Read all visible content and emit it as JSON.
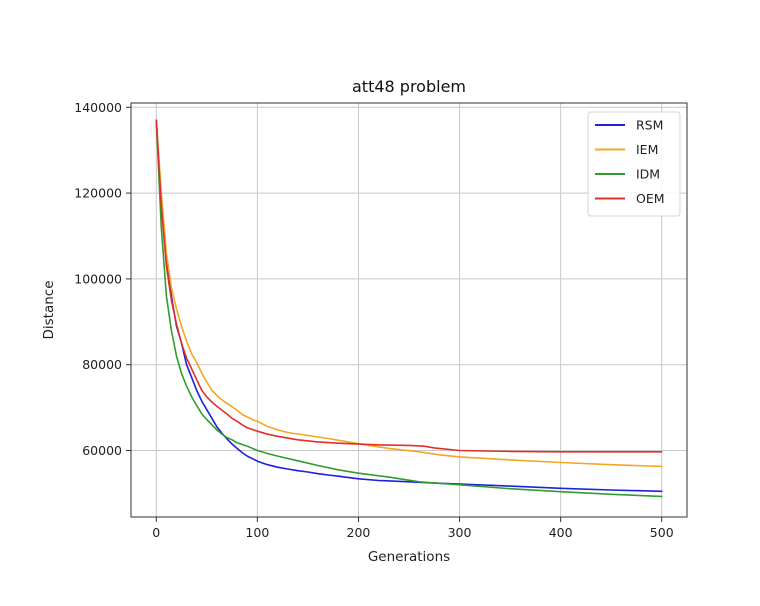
{
  "chart_data": {
    "type": "line",
    "title": "att48 problem",
    "xlabel": "Generations",
    "ylabel": "Distance",
    "xlim": [
      -25,
      525
    ],
    "ylim": [
      44500,
      141000
    ],
    "xticks": [
      0,
      100,
      200,
      300,
      400,
      500
    ],
    "yticks": [
      60000,
      80000,
      100000,
      120000,
      140000
    ],
    "grid": true,
    "legend_position": "top-right",
    "series": [
      {
        "name": "RSM",
        "color": "#1f1fe0",
        "x": [
          0,
          5,
          10,
          15,
          20,
          25,
          30,
          35,
          40,
          45,
          50,
          55,
          60,
          65,
          70,
          75,
          80,
          85,
          90,
          100,
          110,
          120,
          130,
          140,
          150,
          160,
          170,
          180,
          200,
          220,
          250,
          275,
          300,
          350,
          400,
          450,
          500
        ],
        "y": [
          137000,
          118000,
          104000,
          96000,
          89000,
          85000,
          80000,
          77000,
          74000,
          71500,
          69500,
          67500,
          65500,
          64000,
          62700,
          61500,
          60500,
          59500,
          58700,
          57500,
          56700,
          56100,
          55700,
          55300,
          55000,
          54600,
          54300,
          54000,
          53400,
          53000,
          52700,
          52400,
          52200,
          51700,
          51200,
          50800,
          50500
        ]
      },
      {
        "name": "IEM",
        "color": "#f5a623",
        "x": [
          0,
          5,
          10,
          15,
          20,
          25,
          30,
          35,
          40,
          45,
          50,
          55,
          60,
          65,
          70,
          75,
          80,
          85,
          90,
          95,
          100,
          110,
          120,
          130,
          150,
          170,
          190,
          210,
          230,
          260,
          280,
          300,
          350,
          400,
          450,
          500
        ],
        "y": [
          137000,
          120000,
          106000,
          98000,
          93000,
          89000,
          85500,
          82500,
          80500,
          78000,
          76000,
          74000,
          72800,
          71800,
          71000,
          70200,
          69400,
          68400,
          67800,
          67200,
          66800,
          65600,
          64800,
          64200,
          63500,
          62800,
          62000,
          61200,
          60500,
          59700,
          59000,
          58500,
          57800,
          57200,
          56700,
          56300
        ]
      },
      {
        "name": "IDM",
        "color": "#2e9e2e",
        "x": [
          0,
          5,
          10,
          15,
          20,
          25,
          30,
          35,
          40,
          45,
          50,
          55,
          60,
          65,
          70,
          75,
          80,
          90,
          100,
          110,
          120,
          140,
          160,
          180,
          200,
          230,
          260,
          300,
          350,
          400,
          450,
          500
        ],
        "y": [
          137000,
          112000,
          96000,
          88000,
          82000,
          78000,
          75000,
          72500,
          70500,
          68500,
          67200,
          66000,
          64800,
          63800,
          63000,
          62500,
          61800,
          61000,
          60000,
          59300,
          58700,
          57600,
          56500,
          55500,
          54700,
          53800,
          52700,
          52000,
          51100,
          50400,
          49800,
          49300
        ]
      },
      {
        "name": "OEM",
        "color": "#e0302a",
        "x": [
          0,
          5,
          10,
          15,
          20,
          25,
          30,
          35,
          40,
          45,
          50,
          55,
          60,
          65,
          70,
          75,
          80,
          85,
          90,
          100,
          110,
          120,
          140,
          160,
          180,
          200,
          220,
          250,
          265,
          275,
          300,
          350,
          400,
          450,
          500
        ],
        "y": [
          137000,
          117000,
          103000,
          95000,
          89500,
          85000,
          81500,
          79000,
          76500,
          74000,
          72500,
          71300,
          70300,
          69400,
          68500,
          67500,
          66800,
          66000,
          65300,
          64500,
          63800,
          63300,
          62500,
          62000,
          61700,
          61500,
          61300,
          61200,
          61000,
          60600,
          60000,
          59800,
          59700,
          59700,
          59700
        ]
      }
    ]
  }
}
